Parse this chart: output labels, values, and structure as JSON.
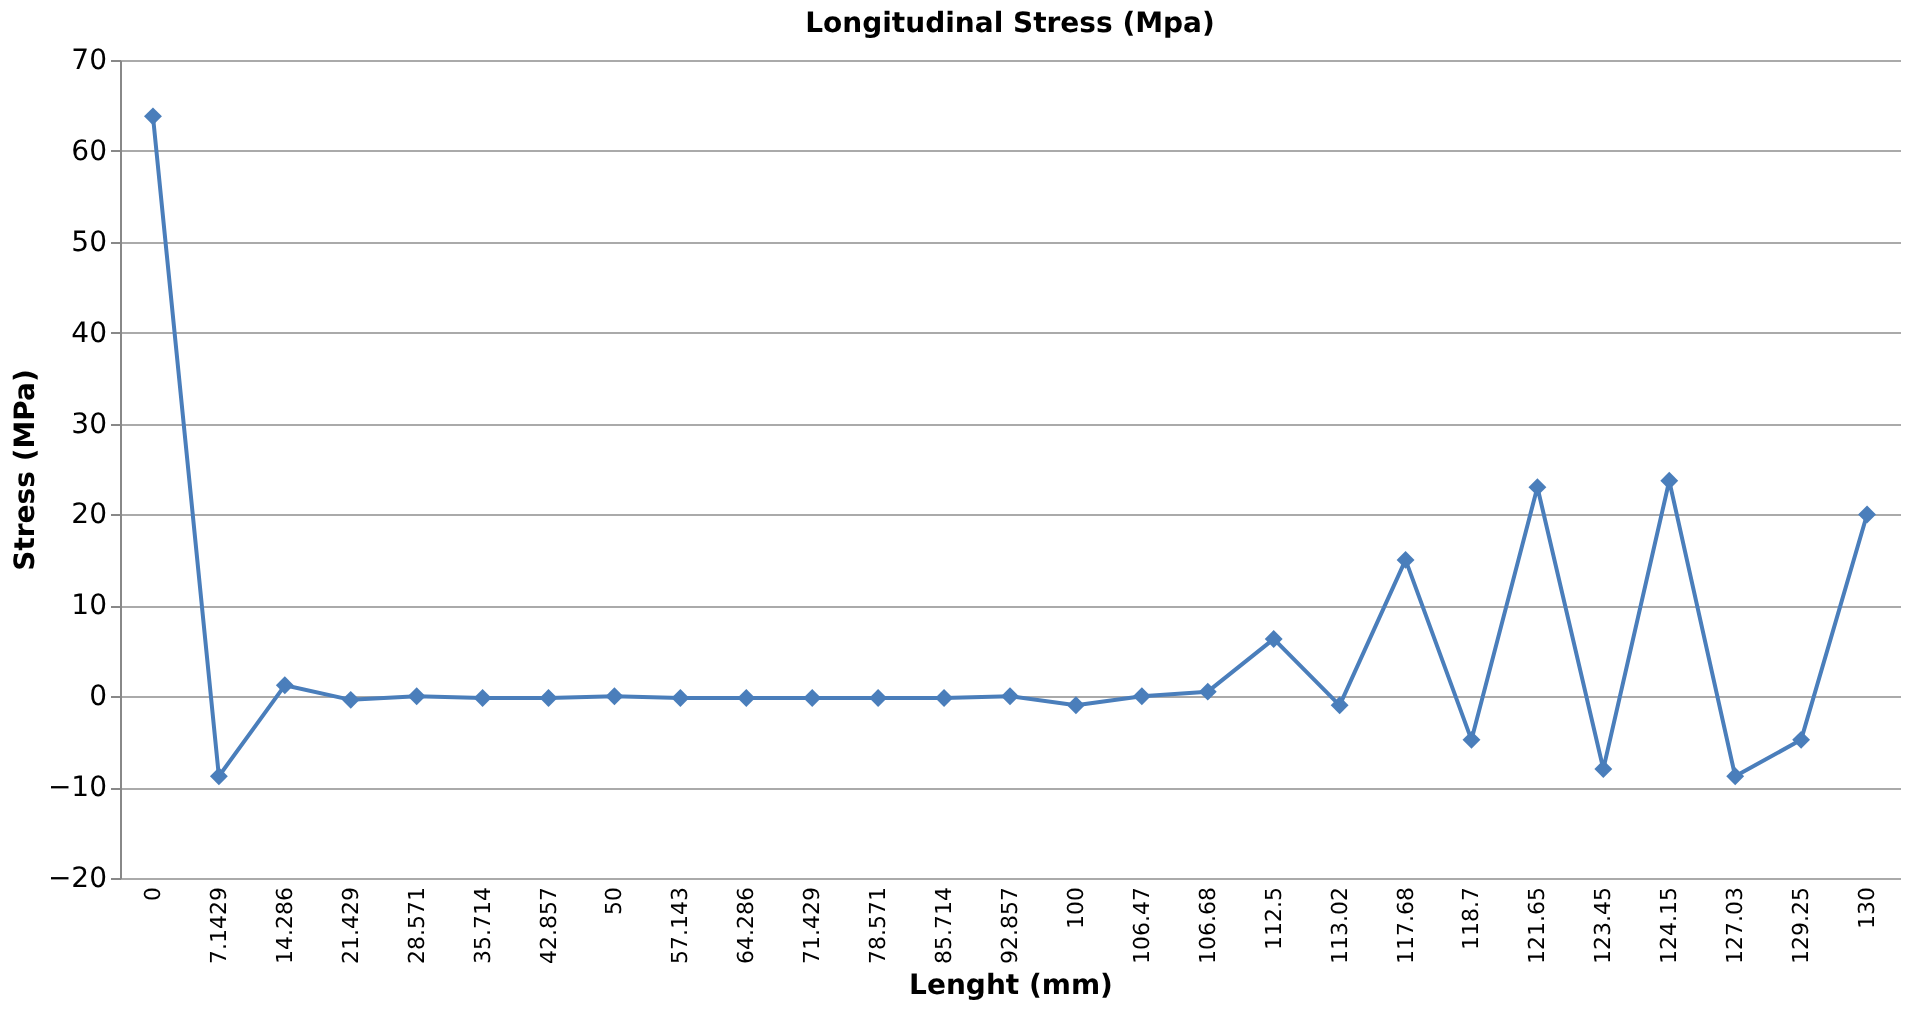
{
  "chart_data": {
    "type": "line",
    "title": "Longitudinal Stress (Mpa)",
    "xlabel": "Lenght (mm)",
    "ylabel": "Stress (MPa)",
    "categories": [
      "0",
      "7.1429",
      "14.286",
      "21.429",
      "28.571",
      "35.714",
      "42.857",
      "50",
      "57.143",
      "64.286",
      "71.429",
      "78.571",
      "85.714",
      "92.857",
      "100",
      "106.47",
      "106.68",
      "112.5",
      "113.02",
      "117.68",
      "118.7",
      "121.65",
      "123.45",
      "124.15",
      "127.03",
      "129.25",
      "130"
    ],
    "series": [
      {
        "color": "#4a7ebb",
        "values": [
          63.8,
          -8.8,
          1.2,
          -0.4,
          0,
          -0.2,
          -0.2,
          0,
          -0.2,
          -0.2,
          -0.2,
          -0.2,
          -0.2,
          0,
          -1,
          0,
          0.5,
          6.3,
          -1,
          15,
          -4.8,
          23,
          -8,
          23.7,
          -8.8,
          -4.8,
          20
        ]
      }
    ],
    "ylim": [
      -20,
      70
    ],
    "yticks": [
      -20,
      -10,
      0,
      10,
      20,
      30,
      40,
      50,
      60,
      70
    ],
    "grid": "y",
    "marker": "diamond",
    "line_style": "solid",
    "legend": false
  }
}
